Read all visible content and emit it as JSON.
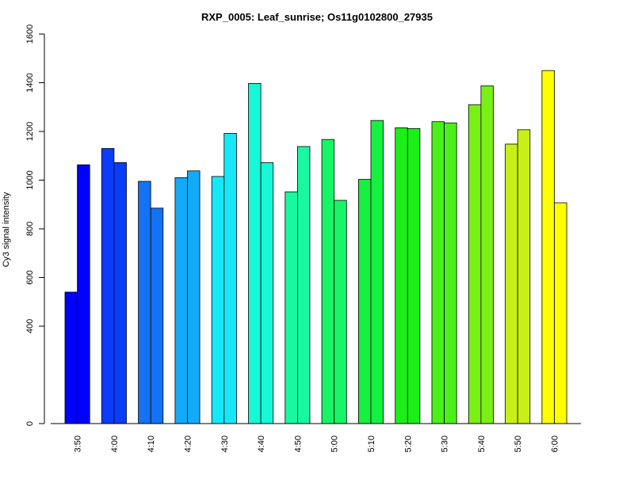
{
  "chart_data": {
    "type": "bar",
    "title": "RXP_0005: Leaf_sunrise; Os11g0102800_27935",
    "xlabel": "",
    "ylabel": "Cy3 signal intensity",
    "ylim": [
      0,
      1600
    ],
    "y_ticks": [
      0,
      400,
      600,
      800,
      1000,
      1200,
      1400,
      1600
    ],
    "categories": [
      "3:50",
      "4:00",
      "4:10",
      "4:20",
      "4:30",
      "4:40",
      "4:50",
      "5:00",
      "5:10",
      "5:20",
      "5:30",
      "5:40",
      "5:50",
      "6:00"
    ],
    "series": [
      {
        "values": [
          540,
          1130,
          995,
          1010,
          1015,
          1397,
          952,
          1167,
          1003,
          1215,
          1240,
          1310,
          1148,
          1450
        ]
      },
      {
        "values": [
          1063,
          1072,
          885,
          1038,
          1192,
          1072,
          1138,
          917,
          1245,
          1212,
          1235,
          1387,
          1207,
          907
        ]
      }
    ],
    "category_colors": [
      "#0000ff",
      "#0a3cfa",
      "#1472f4",
      "#15aaf8",
      "#16e8f8",
      "#17f8d8",
      "#18f8a0",
      "#17f566",
      "#16f040",
      "#1af017",
      "#4af017",
      "#7af017",
      "#c8f017",
      "#ffff00"
    ],
    "grid": false,
    "legend": "none"
  }
}
